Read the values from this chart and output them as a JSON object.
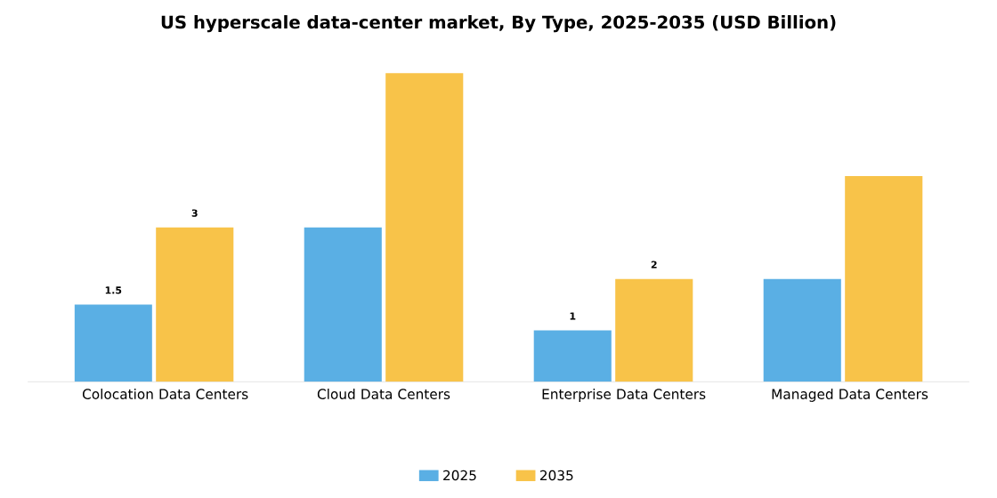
{
  "chart_data": {
    "type": "bar",
    "title": "US hyperscale data-center market, By Type, 2025-2035 (USD Billion)",
    "categories": [
      "Colocation Data Centers",
      "Cloud Data Centers",
      "Enterprise Data Centers",
      "Managed Data Centers"
    ],
    "series": [
      {
        "name": "2025",
        "color": "#5aafe4",
        "values": [
          1.5,
          3,
          1,
          2
        ],
        "value_labels": [
          "1.5",
          null,
          "1",
          null
        ]
      },
      {
        "name": "2035",
        "color": "#f8c349",
        "values": [
          3,
          6,
          2,
          4
        ],
        "value_labels": [
          "3",
          null,
          "2",
          null
        ]
      }
    ],
    "legend": "bottom"
  }
}
